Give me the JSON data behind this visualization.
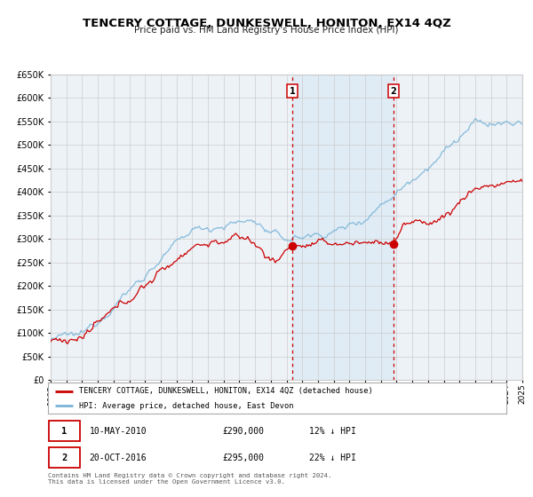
{
  "title": "TENCERY COTTAGE, DUNKESWELL, HONITON, EX14 4QZ",
  "subtitle": "Price paid vs. HM Land Registry's House Price Index (HPI)",
  "legend_label_red": "TENCERY COTTAGE, DUNKESWELL, HONITON, EX14 4QZ (detached house)",
  "legend_label_blue": "HPI: Average price, detached house, East Devon",
  "transaction1_date": "10-MAY-2010",
  "transaction1_price": 290000,
  "transaction1_label": "12% ↓ HPI",
  "transaction2_date": "20-OCT-2016",
  "transaction2_price": 295000,
  "transaction2_label": "22% ↓ HPI",
  "footer": "Contains HM Land Registry data © Crown copyright and database right 2024.\nThis data is licensed under the Open Government Licence v3.0.",
  "red_color": "#cc0000",
  "blue_color": "#7ab4d8",
  "background_color": "#ffffff",
  "plot_bg_color": "#edf2f7",
  "shade_color": "#d6e8f5",
  "grid_color": "#cccccc",
  "ylim_min": 0,
  "ylim_max": 650000,
  "year_start": 1995,
  "year_end": 2025,
  "transaction1_year": 2010.36,
  "transaction2_year": 2016.8
}
